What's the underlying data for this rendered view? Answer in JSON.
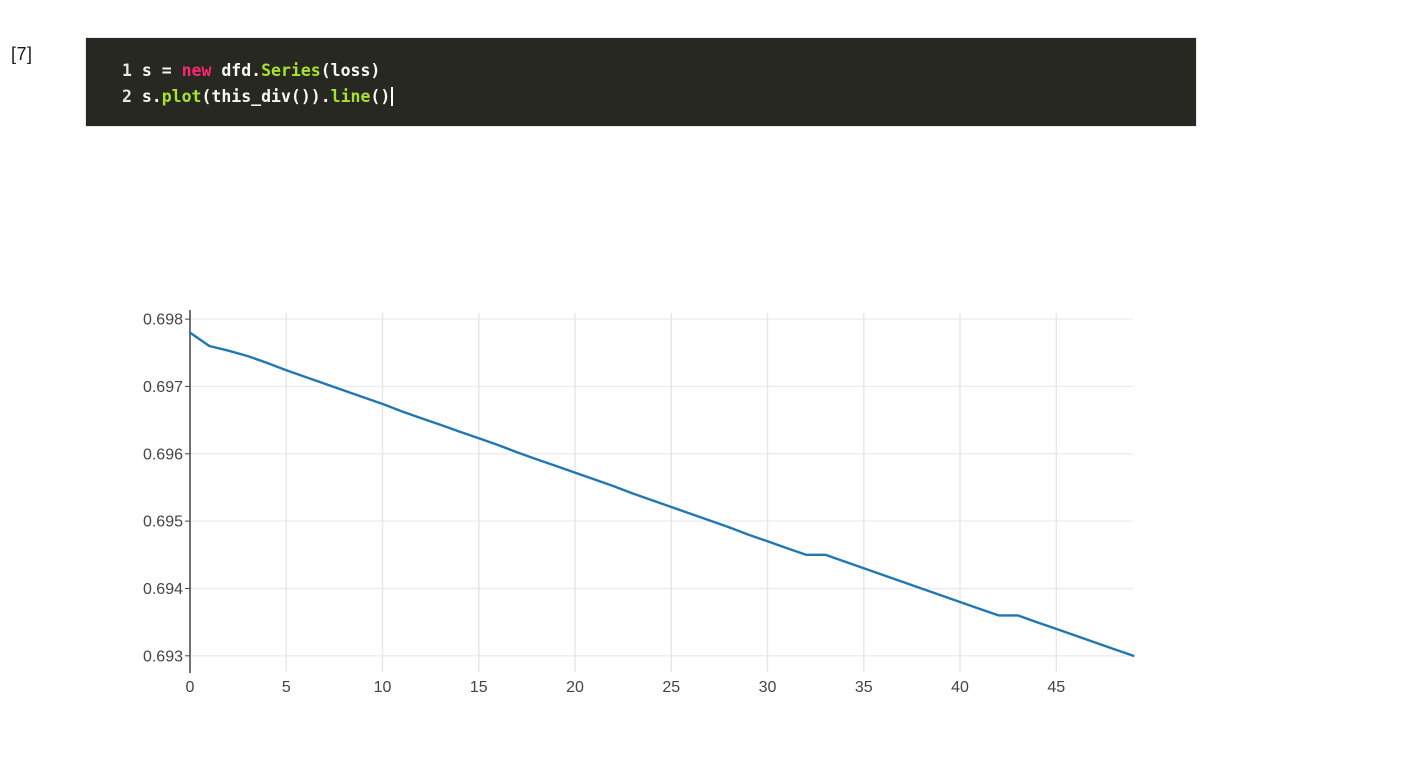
{
  "page": {
    "background": "#ffffff"
  },
  "cell": {
    "label": "[7]",
    "editor": {
      "background": "#272822",
      "border_color": "#e8e8e8",
      "text_color": "#f8f8f2",
      "line_number_color": "#e8e8e2",
      "cursor_color": "#ffffff",
      "token_colors": {
        "fg": "#f8f8f2",
        "kw": "#f92672",
        "fn": "#a6e22e"
      },
      "lines": [
        {
          "number": "1",
          "cursor": false,
          "tokens": [
            {
              "t": "s = ",
              "c": "fg"
            },
            {
              "t": "new",
              "c": "kw"
            },
            {
              "t": " dfd.",
              "c": "fg"
            },
            {
              "t": "Series",
              "c": "fn"
            },
            {
              "t": "(loss)",
              "c": "fg"
            }
          ]
        },
        {
          "number": "2",
          "cursor": true,
          "tokens": [
            {
              "t": "s.",
              "c": "fg"
            },
            {
              "t": "plot",
              "c": "fn"
            },
            {
              "t": "(this_div()).",
              "c": "fg"
            },
            {
              "t": "line",
              "c": "fn"
            },
            {
              "t": "()",
              "c": "fg"
            }
          ]
        }
      ]
    }
  },
  "chart_data": {
    "type": "line",
    "title": "",
    "xlabel": "",
    "ylabel": "",
    "legend": "none",
    "grid": true,
    "x": [
      0,
      1,
      2,
      3,
      4,
      5,
      6,
      7,
      8,
      9,
      10,
      11,
      12,
      13,
      14,
      15,
      16,
      17,
      18,
      19,
      20,
      21,
      22,
      23,
      24,
      25,
      26,
      27,
      28,
      29,
      30,
      31,
      32,
      33,
      34,
      35,
      36,
      37,
      38,
      39,
      40,
      41,
      42,
      43,
      44,
      45,
      46,
      47,
      48,
      49
    ],
    "series": [
      {
        "name": "loss",
        "color": "#1f77b4",
        "values": [
          0.6978,
          0.6976,
          0.69753,
          0.69745,
          0.69735,
          0.69724,
          0.69714,
          0.69704,
          0.69694,
          0.69684,
          0.69674,
          0.69663,
          0.69653,
          0.69643,
          0.69633,
          0.69623,
          0.69613,
          0.69602,
          0.69592,
          0.69582,
          0.69572,
          0.69562,
          0.69552,
          0.69541,
          0.69531,
          0.69521,
          0.69511,
          0.69501,
          0.69491,
          0.6948,
          0.6947,
          0.6946,
          0.6945,
          0.6945,
          0.6944,
          0.6943,
          0.6942,
          0.6941,
          0.694,
          0.6939,
          0.6938,
          0.6937,
          0.6936,
          0.6936,
          0.6935,
          0.6934,
          0.6933,
          0.6932,
          0.6931,
          0.693
        ]
      }
    ],
    "xticks": [
      0,
      5,
      10,
      15,
      20,
      25,
      30,
      35,
      40,
      45
    ],
    "yticks": [
      0.693,
      0.694,
      0.695,
      0.696,
      0.697,
      0.698
    ],
    "xlim": [
      0,
      49
    ],
    "ylim": [
      0.6928,
      0.6981
    ],
    "axis_color": "#444444",
    "tick_label_color": "#444444",
    "vgrid_color": "#e6e6e6",
    "hgrid_color": "#ededed"
  }
}
